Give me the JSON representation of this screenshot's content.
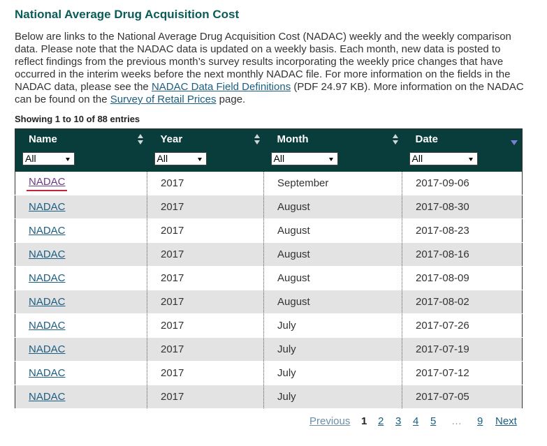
{
  "page": {
    "title": "National Average Drug Acquisition Cost",
    "intro_1": "Below are links to the National Average Drug Acquisition Cost (NADAC) weekly and the weekly comparison data. Please note that the NADAC data is updated on a weekly basis. Each month, new data is posted to reflect findings from the previous month’s survey results incorporating the weekly price changes that have occurred in the interim weeks before the next monthly NADAC file. For more information on the fields in the NADAC data, please see the ",
    "link_definitions": "NADAC Data Field Definitions",
    "intro_2": " (PDF 24.97 KB). More information on the NADAC can be found on the ",
    "link_survey": "Survey of Retail Prices",
    "intro_3": " page.",
    "showing": "Showing 1 to 10 of 88 entries"
  },
  "table": {
    "columns": [
      "Name",
      "Year",
      "Month",
      "Date"
    ],
    "filters": [
      "All",
      "All",
      "All",
      "All"
    ],
    "rows": [
      {
        "name": "NADAC",
        "year": "2017",
        "month": "September",
        "date": "2017-09-06"
      },
      {
        "name": "NADAC",
        "year": "2017",
        "month": "August",
        "date": "2017-08-30"
      },
      {
        "name": "NADAC",
        "year": "2017",
        "month": "August",
        "date": "2017-08-23"
      },
      {
        "name": "NADAC",
        "year": "2017",
        "month": "August",
        "date": "2017-08-16"
      },
      {
        "name": "NADAC",
        "year": "2017",
        "month": "August",
        "date": "2017-08-09"
      },
      {
        "name": "NADAC",
        "year": "2017",
        "month": "August",
        "date": "2017-08-02"
      },
      {
        "name": "NADAC",
        "year": "2017",
        "month": "July",
        "date": "2017-07-26"
      },
      {
        "name": "NADAC",
        "year": "2017",
        "month": "July",
        "date": "2017-07-19"
      },
      {
        "name": "NADAC",
        "year": "2017",
        "month": "July",
        "date": "2017-07-12"
      },
      {
        "name": "NADAC",
        "year": "2017",
        "month": "July",
        "date": "2017-07-05"
      }
    ]
  },
  "pagination": {
    "previous": "Previous",
    "pages": [
      "1",
      "2",
      "3",
      "4",
      "5"
    ],
    "ellipsis": "…",
    "last": "9",
    "next": "Next"
  },
  "colors": {
    "title": "#0b5c59",
    "header_bg": "#093d3b",
    "link": "#1a5e83",
    "visited_link": "#6b3b8a",
    "row_alt": "#e3e3e3"
  }
}
